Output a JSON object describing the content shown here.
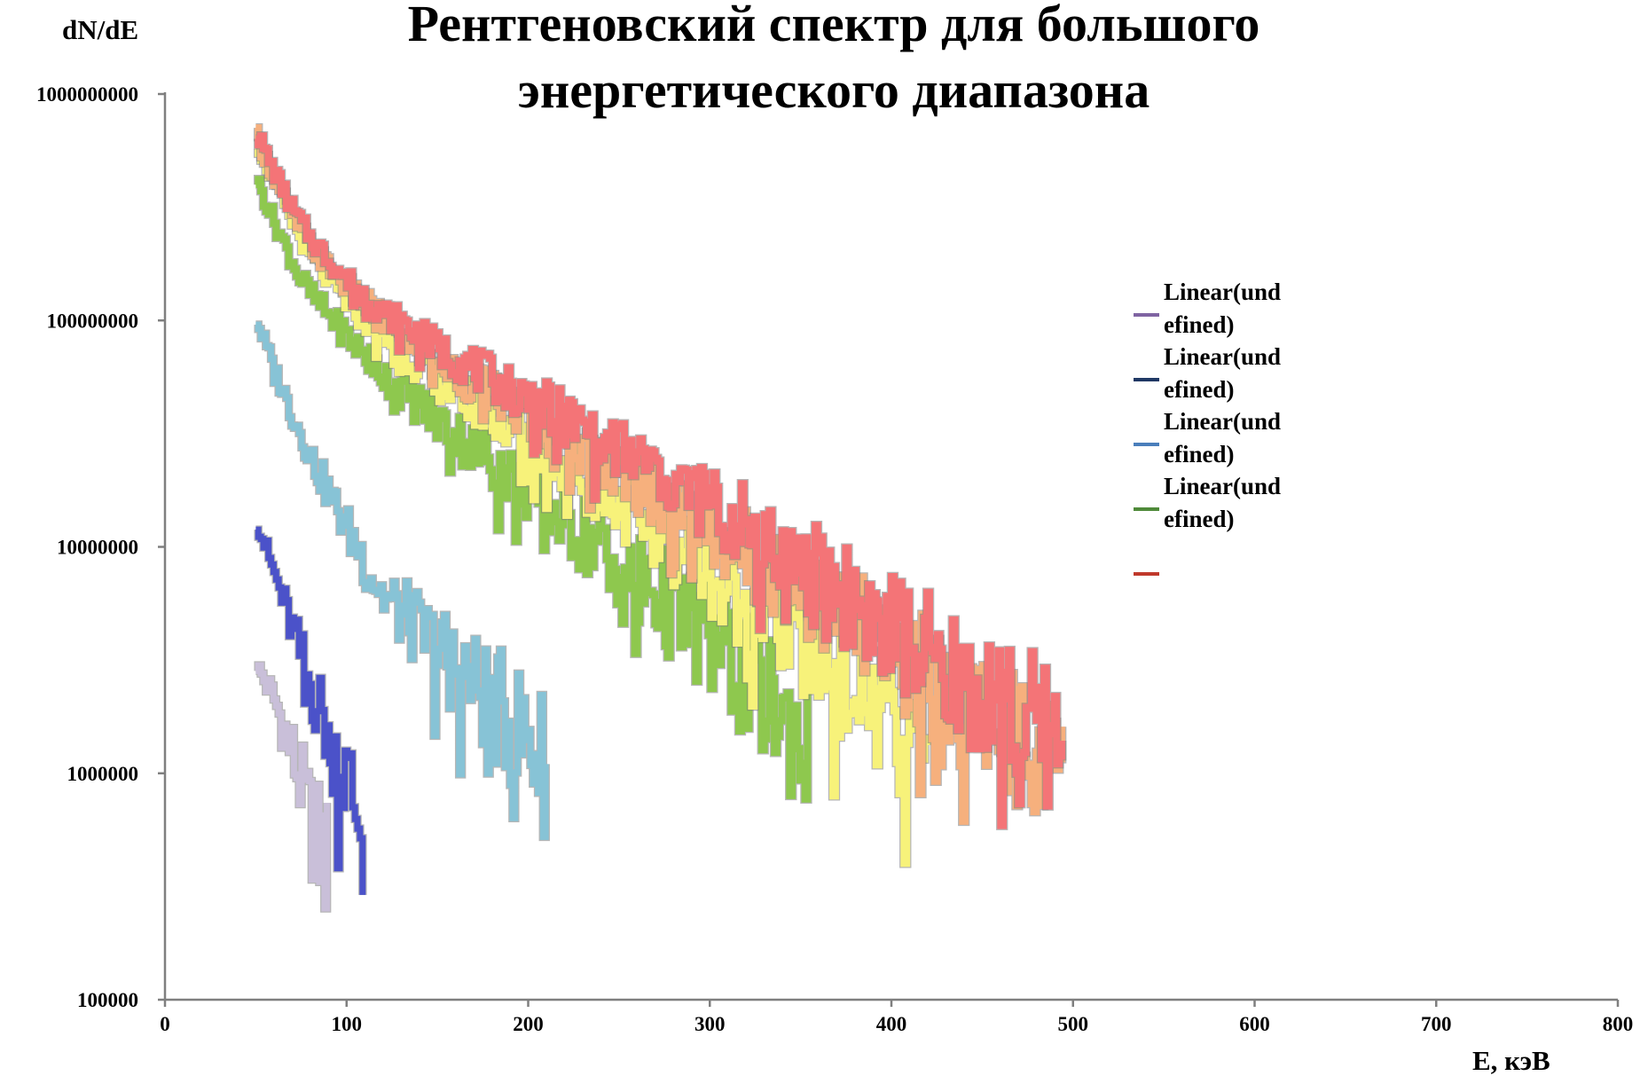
{
  "chart_data": {
    "type": "line",
    "title_lines": [
      "Рентгеновский спектр для большого",
      "энергетического диапазона"
    ],
    "ylabel": "dN/dE",
    "xlabel": "E, кэВ",
    "xlim": [
      0,
      800
    ],
    "ylim": [
      100000,
      1000000000
    ],
    "yscale": "log",
    "grid": false,
    "legend_position": "right",
    "x_ticks": [
      {
        "value": 0,
        "label": "0"
      },
      {
        "value": 100,
        "label": "100"
      },
      {
        "value": 200,
        "label": "200"
      },
      {
        "value": 300,
        "label": "300"
      },
      {
        "value": 400,
        "label": "400"
      },
      {
        "value": 500,
        "label": "500"
      },
      {
        "value": 600,
        "label": "600"
      },
      {
        "value": 700,
        "label": "700"
      },
      {
        "value": 800,
        "label": "800"
      }
    ],
    "y_ticks": [
      {
        "value": 100000,
        "label": "100000"
      },
      {
        "value": 1000000,
        "label": "1000000"
      },
      {
        "value": 10000000,
        "label": "10000000"
      },
      {
        "value": 100000000,
        "label": "100000000"
      },
      {
        "value": 1000000000,
        "label": "1000000000"
      }
    ],
    "legend_entries": [
      {
        "line1": "Linear(und",
        "line2": "efined)",
        "color": "#8064a2"
      },
      {
        "line1": "Linear(und",
        "line2": "efined)",
        "color": "#1f3864"
      },
      {
        "line1": "Linear(und",
        "line2": "efined)",
        "color": "#4a7ebb"
      },
      {
        "line1": "Linear(und",
        "line2": "efined)",
        "color": "#4f8a3a"
      },
      {
        "line1": "",
        "line2": "",
        "color": "#c0392b"
      }
    ],
    "series": [
      {
        "color": "#c9bfd9",
        "width": 7,
        "x": [
          50,
          60,
          70,
          80,
          90
        ],
        "y": [
          3000000,
          2100000,
          1200000,
          600000,
          380000
        ]
      },
      {
        "color": "#4b52c9",
        "width": 7,
        "x": [
          50,
          60,
          70,
          80,
          90,
          100,
          110
        ],
        "y": [
          13000000,
          7500000,
          4200000,
          2400000,
          1500000,
          900000,
          500000
        ]
      },
      {
        "color": "#87c3d6",
        "width": 7,
        "x": [
          50,
          60,
          70,
          80,
          90,
          100,
          120,
          140,
          160,
          180,
          200,
          210
        ],
        "y": [
          100000000,
          60000000,
          38000000,
          25000000,
          17000000,
          12000000,
          6000000,
          4200000,
          3000000,
          2000000,
          1400000,
          1050000
        ]
      },
      {
        "color": "#8ec84e",
        "width": 8,
        "x": [
          50,
          60,
          70,
          80,
          100,
          120,
          150,
          200,
          250,
          300,
          330,
          355
        ],
        "y": [
          420000000,
          270000000,
          180000000,
          130000000,
          85000000,
          58000000,
          36000000,
          18000000,
          8500000,
          3800000,
          2200000,
          1300000
        ]
      },
      {
        "color": "#f7f27a",
        "width": 8,
        "x": [
          50,
          60,
          70,
          80,
          100,
          120,
          150,
          200,
          250,
          300,
          350,
          400,
          420
        ],
        "y": [
          620000000,
          400000000,
          270000000,
          190000000,
          120000000,
          85000000,
          55000000,
          30000000,
          16000000,
          8000000,
          3800000,
          1700000,
          1000000
        ]
      },
      {
        "color": "#f6b07d",
        "width": 8,
        "x": [
          50,
          60,
          70,
          80,
          100,
          120,
          150,
          200,
          250,
          300,
          350,
          400,
          450,
          495
        ],
        "y": [
          650000000,
          420000000,
          290000000,
          210000000,
          140000000,
          100000000,
          65000000,
          38000000,
          22000000,
          12000000,
          6500000,
          3400000,
          1800000,
          1000000
        ]
      },
      {
        "color": "#f47477",
        "width": 8,
        "x": [
          50,
          60,
          70,
          80,
          100,
          120,
          150,
          200,
          250,
          300,
          350,
          400,
          450,
          495
        ],
        "y": [
          680000000,
          450000000,
          310000000,
          230000000,
          150000000,
          110000000,
          75000000,
          45000000,
          27000000,
          15500000,
          8500000,
          4300000,
          2300000,
          1300000
        ]
      }
    ]
  }
}
